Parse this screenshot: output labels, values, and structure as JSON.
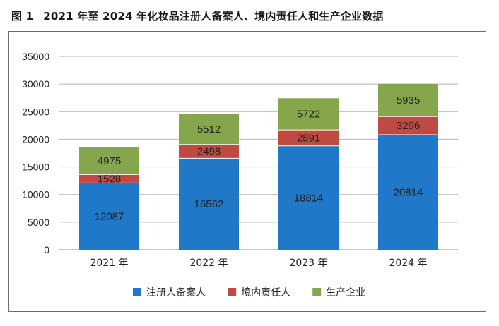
{
  "figure": {
    "number": "图 1",
    "title": "2021 年至 2024 年化妆品注册人备案人、境内责任人和生产企业数据"
  },
  "chart_data": {
    "type": "bar",
    "stacked": true,
    "categories": [
      "2021 年",
      "2022 年",
      "2023 年",
      "2024 年"
    ],
    "series": [
      {
        "name": "注册人备案人",
        "color": "#1f78c8",
        "values": [
          12087,
          16562,
          18814,
          20814
        ]
      },
      {
        "name": "境内责任人",
        "color": "#bf4a42",
        "values": [
          1528,
          2498,
          2891,
          3296
        ]
      },
      {
        "name": "生产企业",
        "color": "#86a64b",
        "values": [
          4975,
          5512,
          5722,
          5935
        ]
      }
    ],
    "yticks": [
      "0",
      "5000",
      "10000",
      "15000",
      "20000",
      "25000",
      "30000",
      "35000"
    ],
    "ylim": [
      0,
      35000
    ],
    "grid": true,
    "legend_position": "bottom"
  }
}
